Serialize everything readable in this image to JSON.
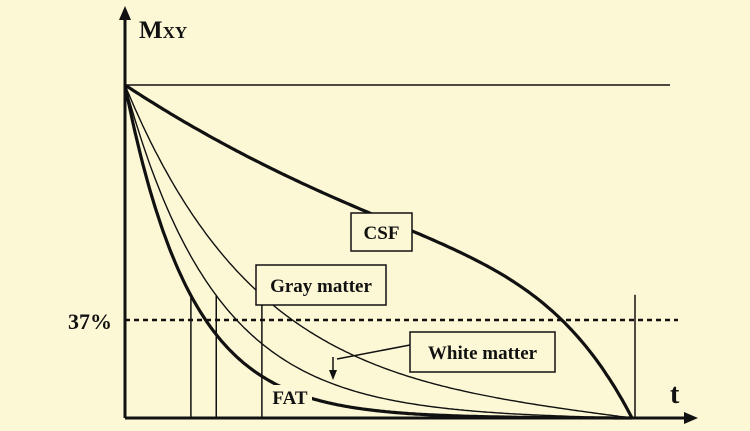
{
  "chart_data": {
    "type": "line",
    "ylabel": "M",
    "ylabel_subscript": "XY",
    "xlabel": "t",
    "reference_line": {
      "label": "37%",
      "value": 37
    },
    "ylim": [
      0,
      100
    ],
    "xlim": [
      0,
      100
    ],
    "grid": false,
    "legend": "none",
    "colors": {
      "background": "#fcf8d6",
      "ink": "#111111"
    },
    "series": [
      {
        "name": "CSF",
        "tau": 100,
        "line": "thick"
      },
      {
        "name": "Gray matter",
        "tau": 27,
        "line": "thin"
      },
      {
        "name": "White matter",
        "tau": 18,
        "line": "thin"
      },
      {
        "name": "FAT",
        "tau": 13,
        "line": "thick"
      }
    ]
  }
}
